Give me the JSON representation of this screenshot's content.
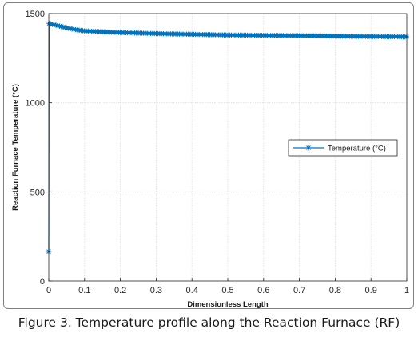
{
  "caption": "Figure 3. Temperature profile along the Reaction Furnace (RF)",
  "chart_data": {
    "type": "line",
    "title": "",
    "xlabel": "Dimensionless Length",
    "ylabel": "Reaction Furnace Temperature (°C)",
    "xlim": [
      0,
      1
    ],
    "ylim": [
      0,
      1500
    ],
    "xticks": [
      0,
      0.1,
      0.2,
      0.3,
      0.4,
      0.5,
      0.6,
      0.7,
      0.8,
      0.9,
      1
    ],
    "xtick_labels": [
      "0",
      "0.1",
      "0.2",
      "0.3",
      "0.4",
      "0.5",
      "0.6",
      "0.7",
      "0.8",
      "0.9",
      "1"
    ],
    "yticks": [
      0,
      500,
      1000,
      1500
    ],
    "ytick_labels": [
      "0",
      "500",
      "1000",
      "1500"
    ],
    "grid": true,
    "legend_position": "right",
    "marker": "asterisk",
    "color": "#0072bd",
    "series": [
      {
        "name": "Temperature (°C)",
        "x": [
          0,
          0.001,
          0.005,
          0.01,
          0.02,
          0.03,
          0.05,
          0.075,
          0.1,
          0.15,
          0.2,
          0.25,
          0.3,
          0.35,
          0.4,
          0.45,
          0.5,
          0.55,
          0.6,
          0.65,
          0.7,
          0.75,
          0.8,
          0.85,
          0.9,
          0.95,
          1.0
        ],
        "y": [
          165,
          1445,
          1442,
          1440,
          1435,
          1430,
          1420,
          1410,
          1403,
          1398,
          1394,
          1391,
          1388,
          1386,
          1384,
          1382,
          1380,
          1379,
          1378,
          1377,
          1376,
          1375,
          1374,
          1373,
          1372,
          1371,
          1370
        ]
      }
    ]
  }
}
